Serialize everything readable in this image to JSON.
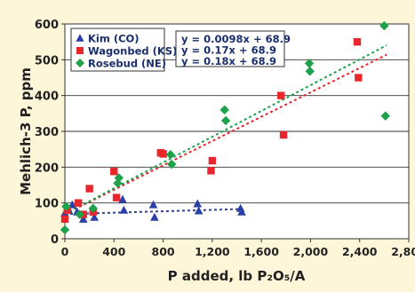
{
  "chart_data": {
    "type": "scatter",
    "title": "",
    "xlabel": "P added, lb P₂O₅/A",
    "ylabel": "Mehlich-3 P, ppm",
    "xlim": [
      0,
      2800
    ],
    "ylim": [
      0,
      600
    ],
    "x_ticks": [
      0,
      400,
      800,
      1200,
      1600,
      2000,
      2400,
      2800
    ],
    "x_tick_labels": [
      "0",
      "400",
      "800",
      "1,200",
      "1,600",
      "2,000",
      "2,400",
      "2,800"
    ],
    "y_ticks": [
      0,
      100,
      200,
      300,
      400,
      500,
      600
    ],
    "y_tick_labels": [
      "0",
      "100",
      "200",
      "300",
      "400",
      "500",
      "600"
    ],
    "grid": "horizontal",
    "legend_position": "top-left",
    "series": [
      {
        "name": "Kim (CO)",
        "marker": "triangle",
        "color": "#2b3fa8",
        "trendline_label": "y = 0.0098x + 68.9",
        "slope": 0.0098,
        "intercept": 68.9,
        "fit_x_range": [
          0,
          1450
        ],
        "points": [
          [
            0,
            72
          ],
          [
            30,
            80
          ],
          [
            60,
            95
          ],
          [
            100,
            75
          ],
          [
            150,
            55
          ],
          [
            240,
            60
          ],
          [
            470,
            110
          ],
          [
            480,
            80
          ],
          [
            720,
            95
          ],
          [
            730,
            60
          ],
          [
            1080,
            98
          ],
          [
            1090,
            78
          ],
          [
            1430,
            85
          ],
          [
            1440,
            75
          ]
        ]
      },
      {
        "name": "Wagonbed (KS)",
        "marker": "square",
        "color": "#e8262b",
        "trendline_label": "y = 0.17x + 68.9",
        "slope": 0.17,
        "intercept": 68.9,
        "fit_x_range": [
          0,
          2620
        ],
        "points": [
          [
            0,
            55
          ],
          [
            20,
            80
          ],
          [
            110,
            100
          ],
          [
            150,
            68
          ],
          [
            200,
            140
          ],
          [
            230,
            75
          ],
          [
            400,
            188
          ],
          [
            420,
            115
          ],
          [
            780,
            240
          ],
          [
            800,
            237
          ],
          [
            1190,
            190
          ],
          [
            1200,
            218
          ],
          [
            1760,
            400
          ],
          [
            1780,
            290
          ],
          [
            2380,
            550
          ],
          [
            2390,
            450
          ]
        ]
      },
      {
        "name": "Rosebud (NE)",
        "marker": "diamond",
        "color": "#1da14a",
        "trendline_label": "y = 0.18x + 68.9",
        "slope": 0.18,
        "intercept": 68.9,
        "fit_x_range": [
          0,
          2620
        ],
        "points": [
          [
            0,
            25
          ],
          [
            10,
            90
          ],
          [
            120,
            68
          ],
          [
            230,
            85
          ],
          [
            430,
            155
          ],
          [
            440,
            170
          ],
          [
            860,
            235
          ],
          [
            870,
            208
          ],
          [
            1300,
            360
          ],
          [
            1310,
            330
          ],
          [
            1990,
            490
          ],
          [
            1995,
            468
          ],
          [
            2600,
            595
          ],
          [
            2610,
            343
          ]
        ]
      }
    ]
  }
}
